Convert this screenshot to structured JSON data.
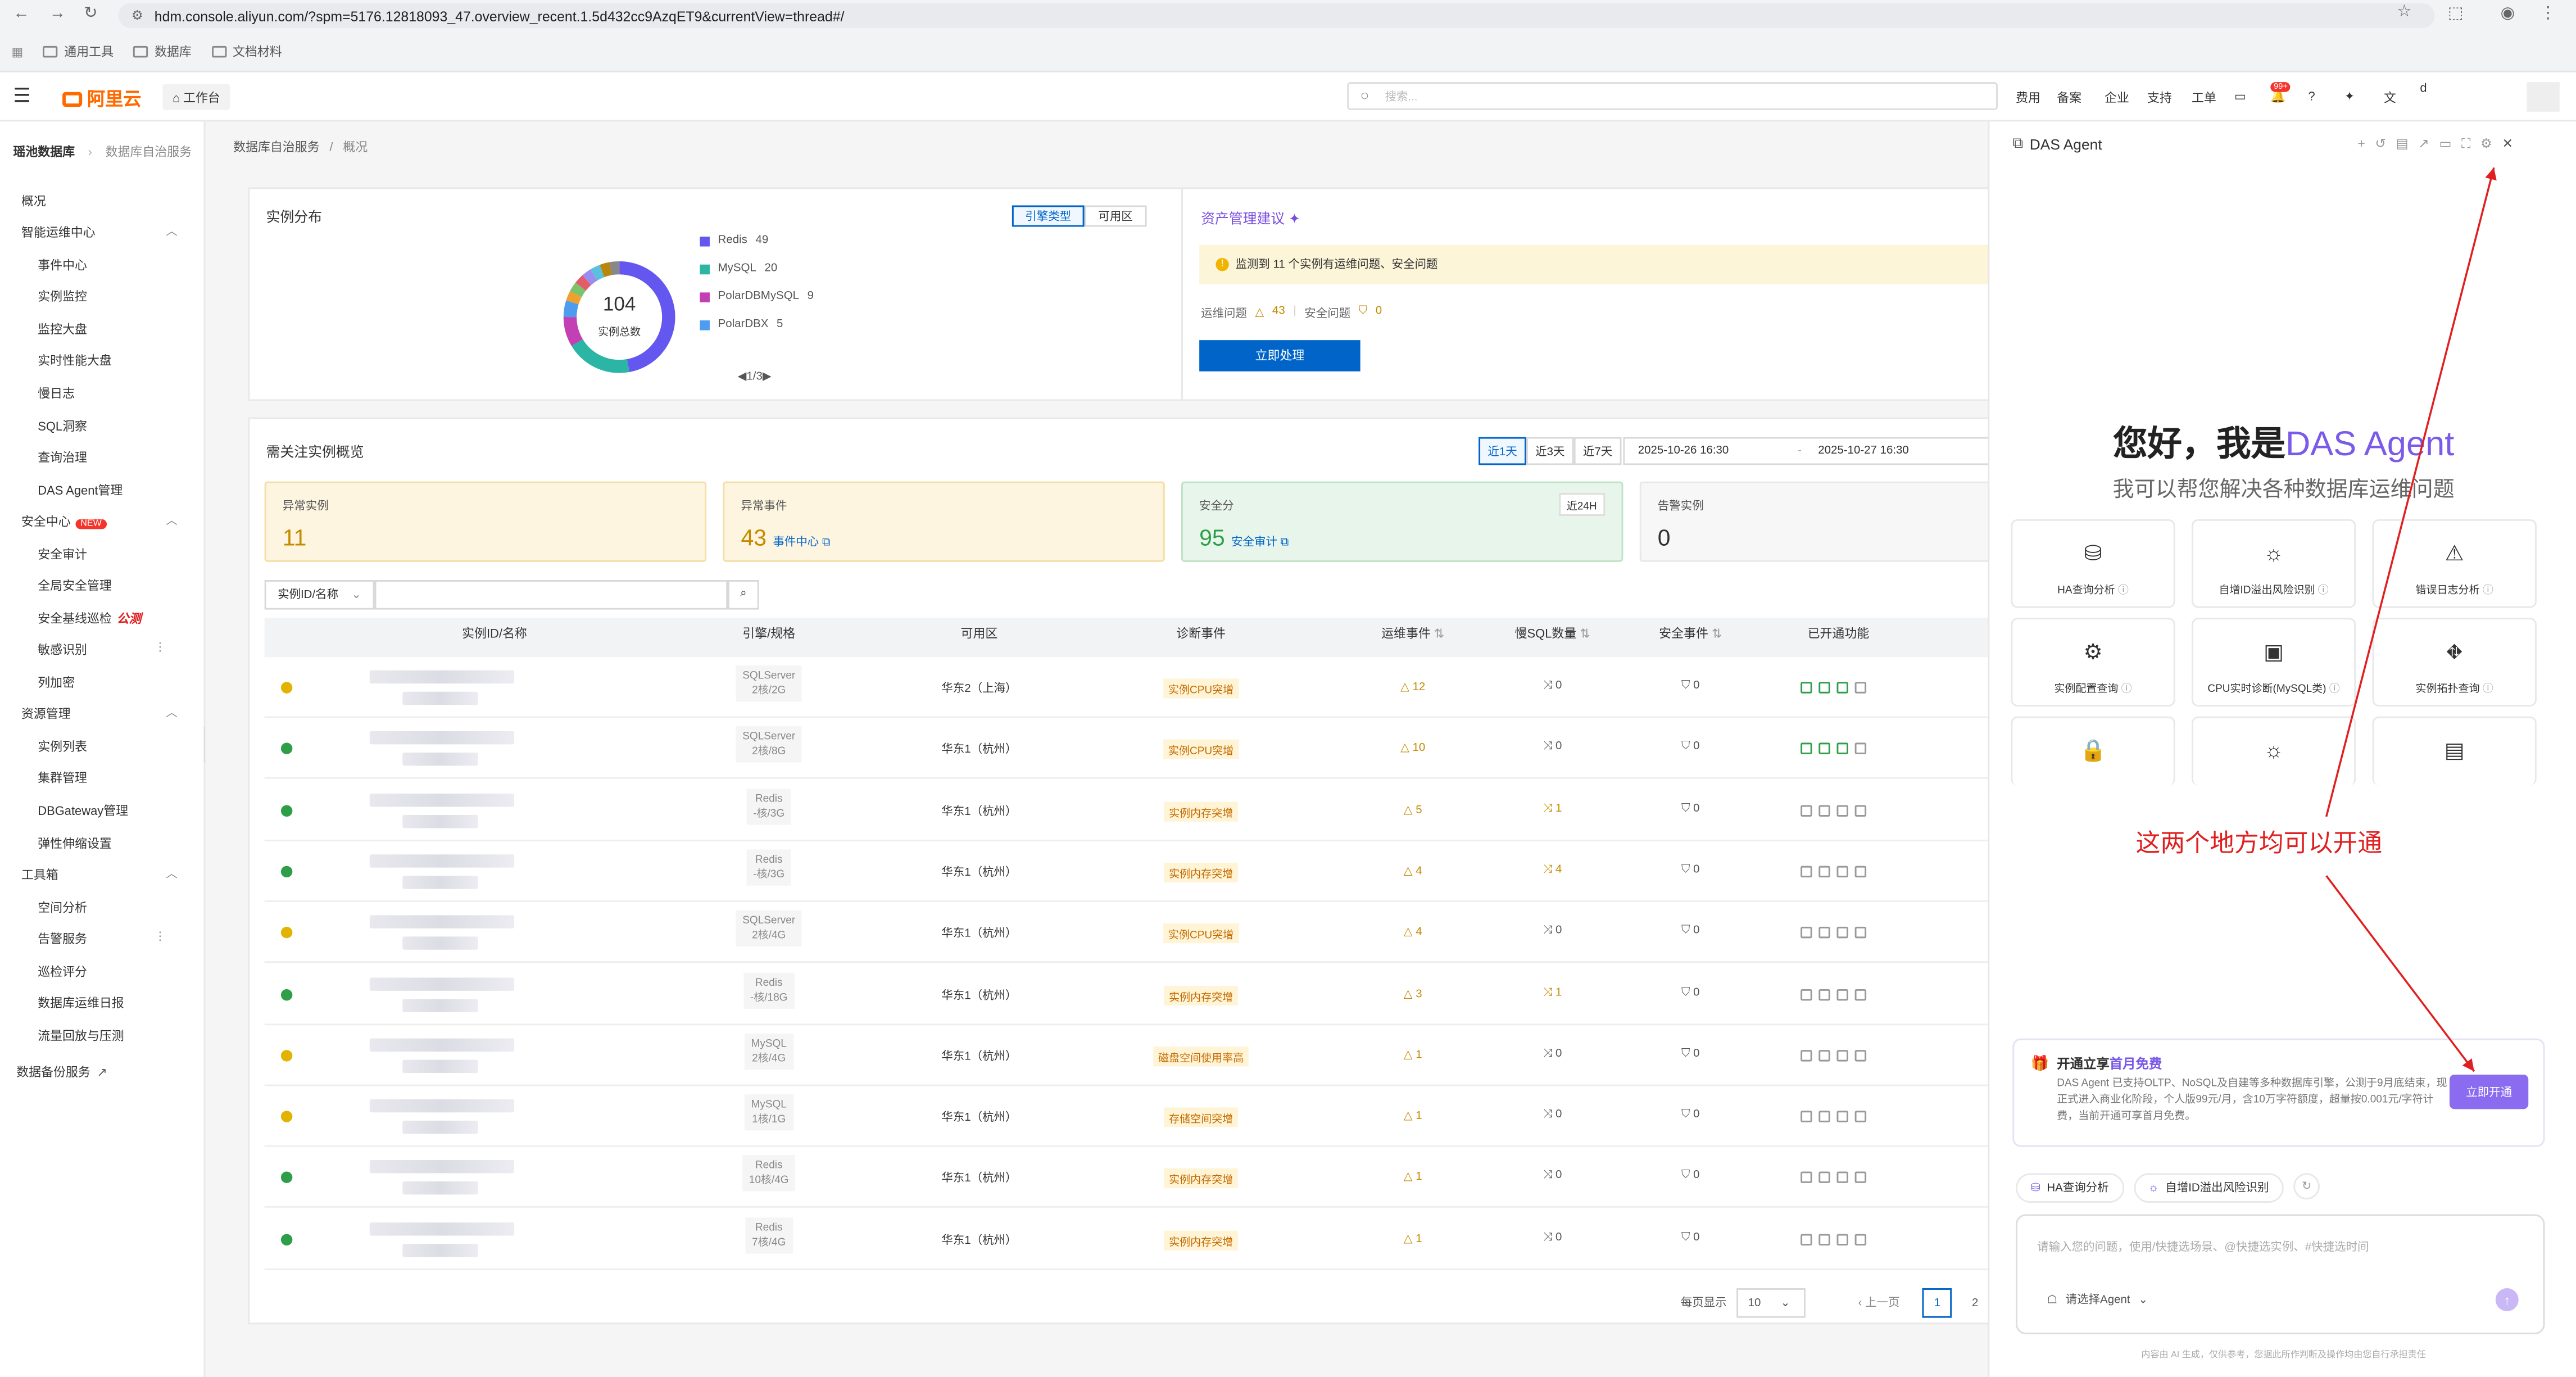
{
  "browser": {
    "url": "hdm.console.aliyun.com/?spm=5176.12818093_47.overview_recent.1.5d432cc9AzqET9&currentView=thread#/",
    "bookmarks": [
      "通用工具",
      "数据库",
      "文档材料"
    ]
  },
  "header": {
    "logo": "阿里云",
    "workbench": "工作台",
    "search_placeholder": "搜索...",
    "nav": [
      "费用",
      "备案",
      "企业",
      "支持",
      "工单"
    ],
    "badge": "99+",
    "user": "d"
  },
  "sidebar": {
    "breadcrumb": [
      "瑶池数据库",
      "数据库自治服务"
    ],
    "items": [
      {
        "label": "概况",
        "level": "h"
      },
      {
        "label": "智能运维中心",
        "level": "h",
        "group": true
      },
      {
        "label": "事件中心",
        "level": "i"
      },
      {
        "label": "实例监控",
        "level": "i"
      },
      {
        "label": "监控大盘",
        "level": "i"
      },
      {
        "label": "实时性能大盘",
        "level": "i"
      },
      {
        "label": "慢日志",
        "level": "i"
      },
      {
        "label": "SQL洞察",
        "level": "i"
      },
      {
        "label": "查询治理",
        "level": "i"
      },
      {
        "label": "DAS Agent管理",
        "level": "i"
      },
      {
        "label": "安全中心",
        "level": "h",
        "group": true,
        "badge": "NEW"
      },
      {
        "label": "安全审计",
        "level": "i"
      },
      {
        "label": "全局安全管理",
        "level": "i"
      },
      {
        "label": "安全基线巡检",
        "level": "i",
        "tag": "公测"
      },
      {
        "label": "敏感识别",
        "level": "i",
        "more": true
      },
      {
        "label": "列加密",
        "level": "i"
      },
      {
        "label": "资源管理",
        "level": "h",
        "group": true
      },
      {
        "label": "实例列表",
        "level": "i"
      },
      {
        "label": "集群管理",
        "level": "i"
      },
      {
        "label": "DBGateway管理",
        "level": "i"
      },
      {
        "label": "弹性伸缩设置",
        "level": "i"
      },
      {
        "label": "工具箱",
        "level": "h",
        "group": true
      },
      {
        "label": "空间分析",
        "level": "i"
      },
      {
        "label": "告警服务",
        "level": "i",
        "more": true
      },
      {
        "label": "巡检评分",
        "level": "i"
      },
      {
        "label": "数据库运维日报",
        "level": "i"
      },
      {
        "label": "流量回放与压测",
        "level": "i"
      },
      {
        "label": "数据备份服务",
        "level": "h",
        "ext": true
      }
    ]
  },
  "main": {
    "breadcrumb": [
      "数据库自治服务",
      "概况"
    ],
    "dist": {
      "title": "实例分布",
      "tabs": [
        "引擎类型",
        "可用区"
      ],
      "total": "104",
      "total_label": "实例总数",
      "legend": [
        {
          "name": "Redis",
          "count": "49",
          "color": "#6457f0"
        },
        {
          "name": "MySQL",
          "count": "20",
          "color": "#2bb5a4"
        },
        {
          "name": "PolarDBMySQL",
          "count": "9",
          "color": "#c23fb4"
        },
        {
          "name": "PolarDBX",
          "count": "5",
          "color": "#4d9cf0"
        }
      ],
      "pager": "1/3"
    },
    "asset": {
      "title": "资产管理建议",
      "alert": "监测到 11 个实例有运维问题、安全问题",
      "ops_label": "运维问题",
      "ops_count": "43",
      "sec_label": "安全问题",
      "sec_count": "0",
      "button": "立即处理"
    },
    "overview": {
      "title": "需关注实例概览",
      "ranges": [
        "近1天",
        "近3天",
        "近7天"
      ],
      "from": "2025-10-26 16:30",
      "sep": "-",
      "to": "2025-10-27 16:30"
    },
    "kpis": [
      {
        "label": "异常实例",
        "value": "11",
        "link": "",
        "bg": "#fdf5e0",
        "border": "#f3dfa7",
        "color": "#c48a00"
      },
      {
        "label": "异常事件",
        "value": "43",
        "link": "事件中心",
        "bg": "#fdf5e0",
        "border": "#f3dfa7",
        "color": "#c48a00"
      },
      {
        "label": "安全分",
        "value": "95",
        "link": "安全审计",
        "bg": "#e8f5ea",
        "border": "#bfe3c6",
        "color": "#2e9e48",
        "tag": "近24H"
      },
      {
        "label": "告警实例",
        "value": "0",
        "link": "",
        "bg": "#f7f7f7",
        "border": "#e8e8e8",
        "color": "#333"
      }
    ],
    "filter": {
      "select": "实例ID/名称"
    },
    "columns": [
      "实例ID/名称",
      "引擎/规格",
      "可用区",
      "诊断事件",
      "运维事件",
      "慢SQL数量",
      "安全事件",
      "已开通功能"
    ],
    "rows": [
      {
        "status": "warn",
        "engine": "SQLServer",
        "spec": "2核/2G",
        "zone": "华东2（上海）",
        "diag": "实例CPU突增",
        "ops": "12",
        "slow": "0",
        "sec": "0"
      },
      {
        "status": "ok",
        "engine": "SQLServer",
        "spec": "2核/8G",
        "zone": "华东1（杭州）",
        "diag": "实例CPU突增",
        "ops": "10",
        "slow": "0",
        "sec": "0"
      },
      {
        "status": "ok",
        "engine": "Redis",
        "spec": "-核/3G",
        "zone": "华东1（杭州）",
        "diag": "实例内存突增",
        "ops": "5",
        "slow": "1",
        "sec": "0"
      },
      {
        "status": "ok",
        "engine": "Redis",
        "spec": "-核/3G",
        "zone": "华东1（杭州）",
        "diag": "实例内存突增",
        "ops": "4",
        "slow": "4",
        "sec": "0"
      },
      {
        "status": "warn",
        "engine": "SQLServer",
        "spec": "2核/4G",
        "zone": "华东1（杭州）",
        "diag": "实例CPU突增",
        "ops": "4",
        "slow": "0",
        "sec": "0"
      },
      {
        "status": "ok",
        "engine": "Redis",
        "spec": "-核/18G",
        "zone": "华东1（杭州）",
        "diag": "实例内存突增",
        "ops": "3",
        "slow": "1",
        "sec": "0"
      },
      {
        "status": "warn",
        "engine": "MySQL",
        "spec": "2核/4G",
        "zone": "华东1（杭州）",
        "diag": "磁盘空间使用率高",
        "ops": "1",
        "slow": "0",
        "sec": "0"
      },
      {
        "status": "warn",
        "engine": "MySQL",
        "spec": "1核/1G",
        "zone": "华东1（杭州）",
        "diag": "存储空间突增",
        "ops": "1",
        "slow": "0",
        "sec": "0"
      },
      {
        "status": "ok",
        "engine": "Redis",
        "spec": "10核/4G",
        "zone": "华东1（杭州）",
        "diag": "实例内存突增",
        "ops": "1",
        "slow": "0",
        "sec": "0"
      },
      {
        "status": "ok",
        "engine": "Redis",
        "spec": "7核/4G",
        "zone": "华东1（杭州）",
        "diag": "实例内存突增",
        "ops": "1",
        "slow": "0",
        "sec": "0"
      }
    ],
    "pagination": {
      "per_page_label": "每页显示",
      "per_page": "10",
      "prev": "上一页",
      "page1": "1",
      "page2": "2"
    }
  },
  "agent": {
    "title": "DAS Agent",
    "greeting_a": "您好，我是",
    "greeting_b": "DAS Agent",
    "subtitle": "我可以帮您解决各种数据库运维问题",
    "tools": [
      {
        "label": "HA查询分析",
        "icon": "database-icon",
        "glyph": "⛁"
      },
      {
        "label": "自增ID溢出风险识别",
        "icon": "bug-icon",
        "glyph": "☼"
      },
      {
        "label": "错误日志分析",
        "icon": "warning-icon",
        "glyph": "⚠"
      },
      {
        "label": "实例配置查询",
        "icon": "gear-icon",
        "glyph": "⚙"
      },
      {
        "label": "CPU实时诊断(MySQL类)",
        "icon": "cpu-icon",
        "glyph": "▣"
      },
      {
        "label": "实例拓扑查询",
        "icon": "topology-icon",
        "glyph": "⛖"
      },
      {
        "label": "",
        "icon": "lock-icon",
        "glyph": "🔒"
      },
      {
        "label": "",
        "icon": "bug-icon",
        "glyph": "☼"
      },
      {
        "label": "",
        "icon": "memory-icon",
        "glyph": "▤"
      }
    ],
    "annotation": "这两个地方均可以开通",
    "promo": {
      "title_a": "开通立享",
      "title_b": "首月免费",
      "body": "DAS Agent 已支持OLTP、NoSQL及自建等多种数据库引擎，公测于9月底结束，现正式进入商业化阶段，个人版99元/月，含10万字符额度，超量按0.001元/字符计费，当前开通可享首月免费。",
      "button": "立即开通"
    },
    "chips": [
      "HA查询分析",
      "自增ID溢出风险识别"
    ],
    "input_placeholder": "请输入您的问题，使用/快捷选场景、@快捷选实例、#快捷选时间",
    "agent_select": "请选择Agent",
    "footer": "内容由 AI 生成，仅供参考，您据此所作判断及操作均由您自行承担责任"
  }
}
